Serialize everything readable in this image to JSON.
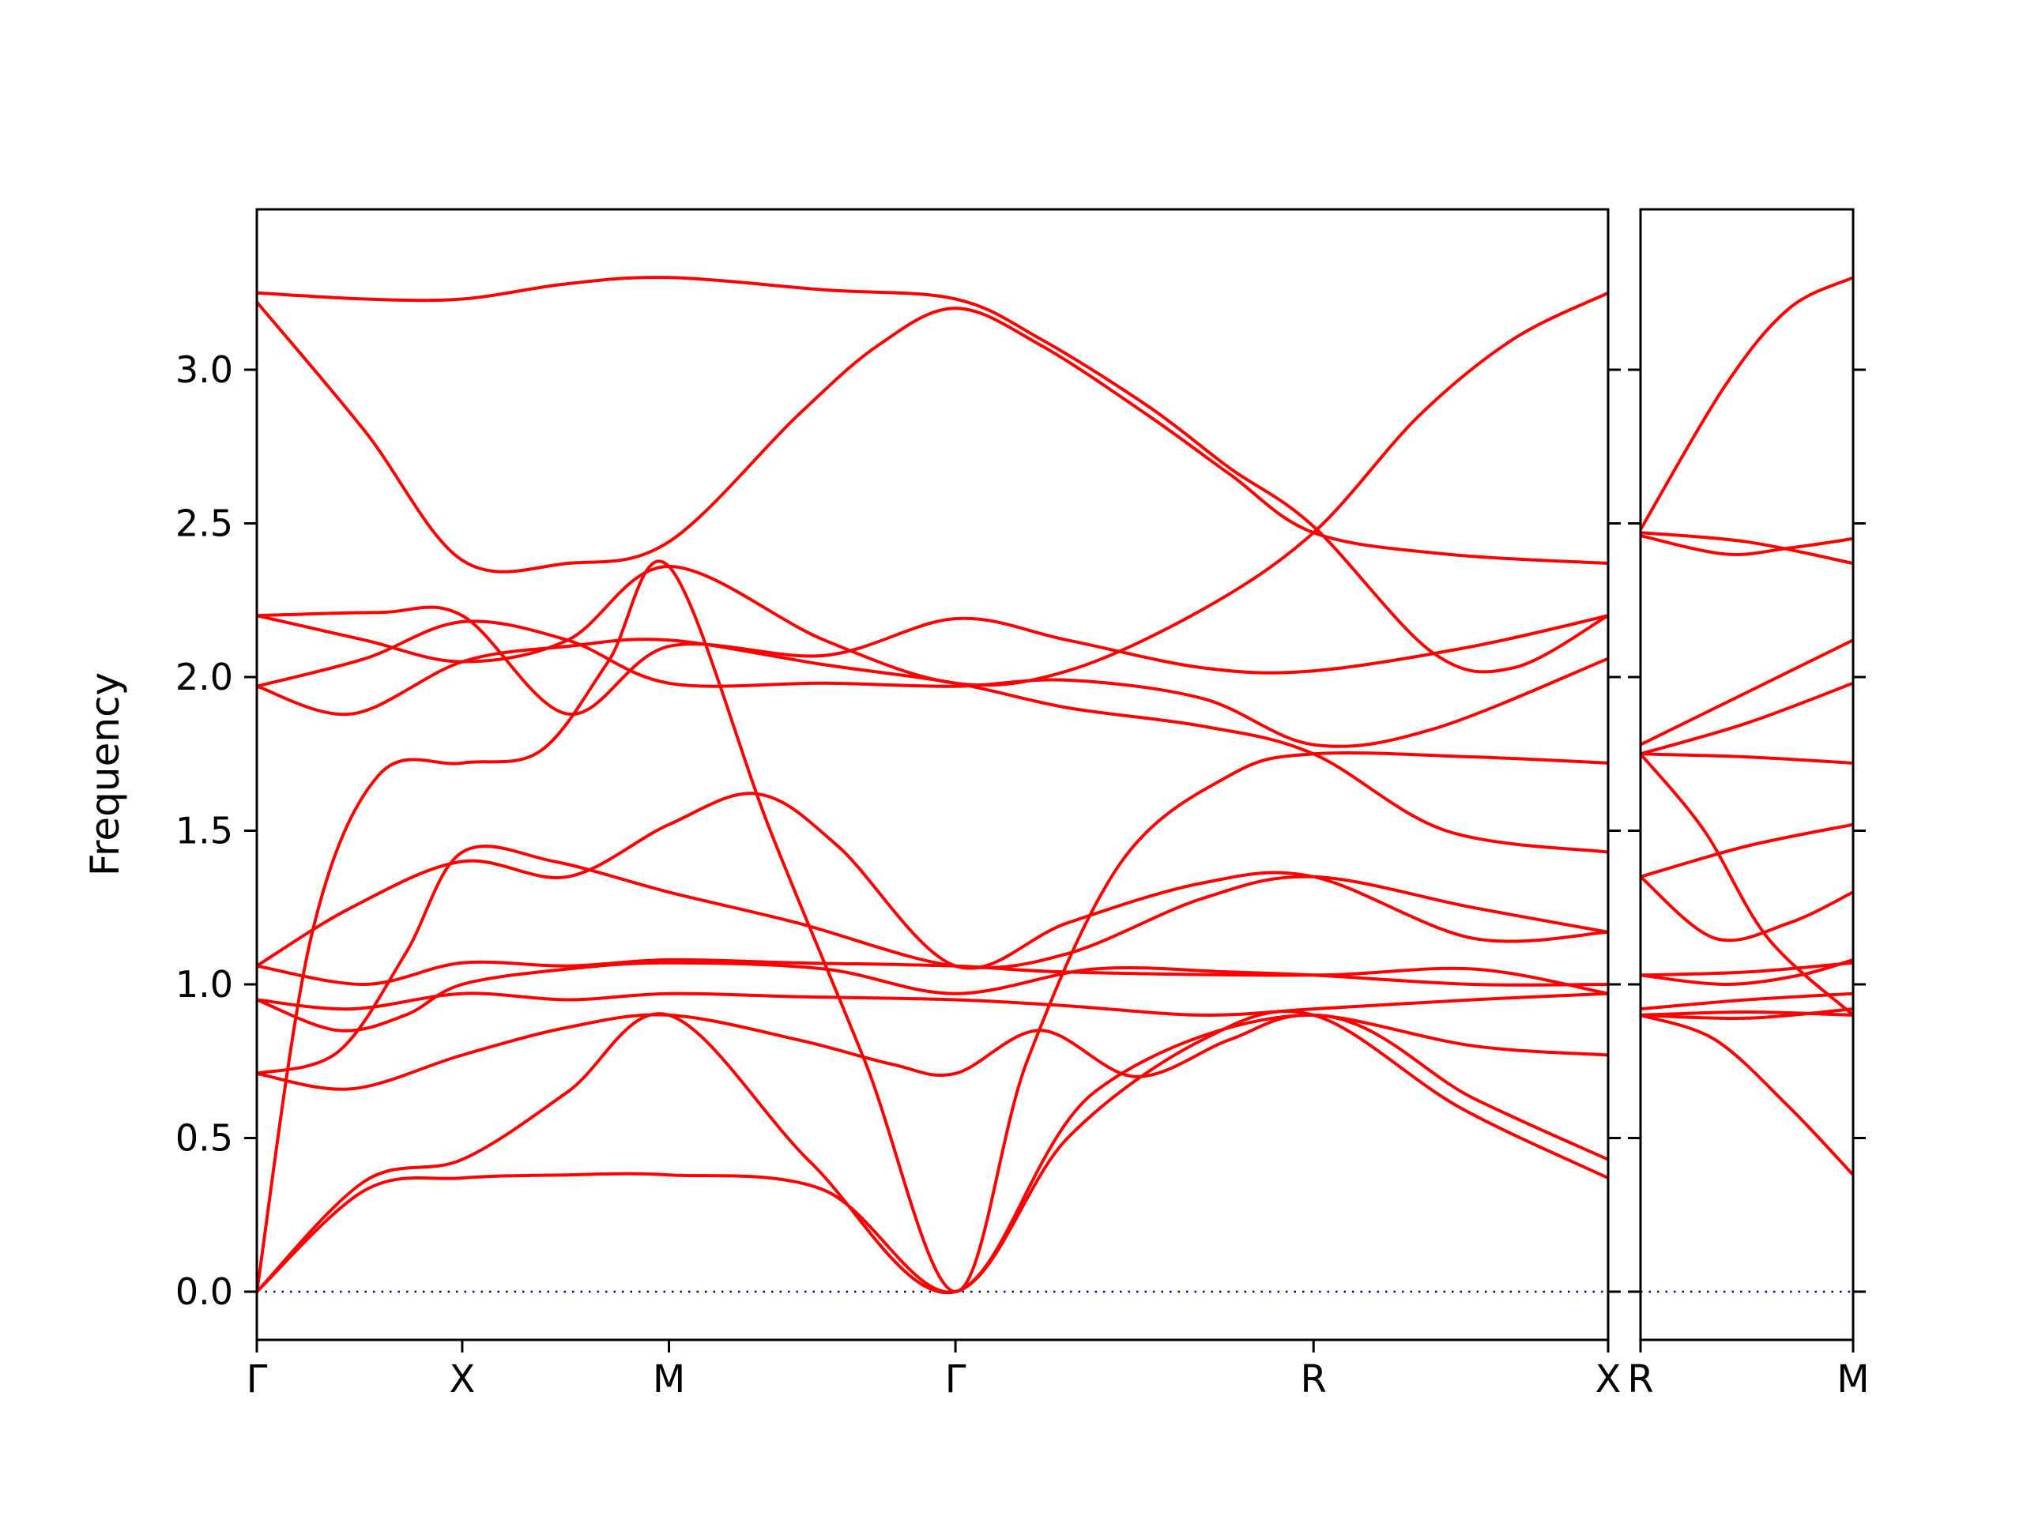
{
  "figure": {
    "background": "#ffffff",
    "band_color": "#ff0000",
    "axis_color": "#000000",
    "zero_line_color": "#00008b"
  },
  "chart_data": {
    "type": "line",
    "title": "",
    "xlabel": "",
    "ylabel": "Frequency",
    "ylim": [
      -0.16,
      3.52
    ],
    "grid": false,
    "legend": null,
    "line_color": "#ff0000",
    "zero_line": {
      "y": 0.0,
      "color": "#00008b",
      "style": "dotted"
    },
    "yticks": [
      0.0,
      0.5,
      1.0,
      1.5,
      2.0,
      2.5,
      3.0
    ],
    "ytick_labels": [
      "0.0",
      "0.5",
      "1.0",
      "1.5",
      "2.0",
      "2.5",
      "3.0"
    ],
    "panels": [
      {
        "name": "main",
        "x_labels": [
          "Γ",
          "X",
          "M",
          "Γ",
          "R",
          "X"
        ],
        "x_positions": [
          0,
          0.152,
          0.305,
          0.517,
          0.782,
          1.0
        ],
        "bands": [
          [
            [
              0,
              0
            ],
            [
              0.08,
              0.33
            ],
            [
              0.152,
              0.37
            ],
            [
              0.23,
              0.38
            ],
            [
              0.305,
              0.38
            ],
            [
              0.42,
              0.33
            ],
            [
              0.517,
              0
            ],
            [
              0.6,
              0.5
            ],
            [
              0.7,
              0.82
            ],
            [
              0.782,
              0.9
            ],
            [
              0.89,
              0.6
            ],
            [
              1,
              0.37
            ]
          ],
          [
            [
              0,
              0
            ],
            [
              0.08,
              0.36
            ],
            [
              0.152,
              0.43
            ],
            [
              0.23,
              0.65
            ],
            [
              0.305,
              0.9
            ],
            [
              0.41,
              0.42
            ],
            [
              0.517,
              0
            ],
            [
              0.62,
              0.65
            ],
            [
              0.782,
              0.9
            ],
            [
              0.9,
              0.63
            ],
            [
              1,
              0.43
            ]
          ],
          [
            [
              0,
              0
            ],
            [
              0.04,
              1.15
            ],
            [
              0.09,
              1.68
            ],
            [
              0.152,
              1.72
            ],
            [
              0.21,
              1.76
            ],
            [
              0.26,
              2.05
            ],
            [
              0.305,
              2.36
            ],
            [
              0.38,
              1.5
            ],
            [
              0.45,
              0.75
            ],
            [
              0.517,
              0
            ],
            [
              0.57,
              0.75
            ],
            [
              0.64,
              1.4
            ],
            [
              0.72,
              1.68
            ],
            [
              0.782,
              1.75
            ],
            [
              0.9,
              1.74
            ],
            [
              1,
              1.72
            ]
          ],
          [
            [
              0,
              0.71
            ],
            [
              0.07,
              0.66
            ],
            [
              0.152,
              0.77
            ],
            [
              0.23,
              0.86
            ],
            [
              0.305,
              0.9
            ],
            [
              0.4,
              0.82
            ],
            [
              0.47,
              0.74
            ],
            [
              0.517,
              0.71
            ],
            [
              0.58,
              0.85
            ],
            [
              0.65,
              0.7
            ],
            [
              0.72,
              0.82
            ],
            [
              0.782,
              0.9
            ],
            [
              0.9,
              0.8
            ],
            [
              1,
              0.77
            ]
          ],
          [
            [
              0,
              0.71
            ],
            [
              0.06,
              0.78
            ],
            [
              0.11,
              1.1
            ],
            [
              0.152,
              1.43
            ],
            [
              0.22,
              1.4
            ],
            [
              0.305,
              1.3
            ],
            [
              0.4,
              1.2
            ],
            [
              0.517,
              1.06
            ],
            [
              0.6,
              1.1
            ],
            [
              0.7,
              1.28
            ],
            [
              0.782,
              1.35
            ],
            [
              0.9,
              1.25
            ],
            [
              1,
              1.17
            ]
          ],
          [
            [
              0,
              0.95
            ],
            [
              0.07,
              0.92
            ],
            [
              0.152,
              0.97
            ],
            [
              0.23,
              0.95
            ],
            [
              0.305,
              0.97
            ],
            [
              0.4,
              0.96
            ],
            [
              0.517,
              0.95
            ],
            [
              0.6,
              0.93
            ],
            [
              0.7,
              0.9
            ],
            [
              0.782,
              0.92
            ],
            [
              0.9,
              0.95
            ],
            [
              1,
              0.97
            ]
          ],
          [
            [
              0,
              0.95
            ],
            [
              0.06,
              0.85
            ],
            [
              0.11,
              0.9
            ],
            [
              0.152,
              1.0
            ],
            [
              0.23,
              1.05
            ],
            [
              0.305,
              1.07
            ],
            [
              0.42,
              1.05
            ],
            [
              0.517,
              0.97
            ],
            [
              0.62,
              1.05
            ],
            [
              0.72,
              1.04
            ],
            [
              0.782,
              1.03
            ],
            [
              0.9,
              1.0
            ],
            [
              1,
              1.0
            ]
          ],
          [
            [
              0,
              1.06
            ],
            [
              0.08,
              1.0
            ],
            [
              0.152,
              1.07
            ],
            [
              0.23,
              1.06
            ],
            [
              0.305,
              1.08
            ],
            [
              0.4,
              1.07
            ],
            [
              0.517,
              1.06
            ],
            [
              0.6,
              1.04
            ],
            [
              0.782,
              1.03
            ],
            [
              0.9,
              1.05
            ],
            [
              1,
              0.97
            ]
          ],
          [
            [
              0,
              1.06
            ],
            [
              0.07,
              1.25
            ],
            [
              0.152,
              1.4
            ],
            [
              0.23,
              1.35
            ],
            [
              0.305,
              1.52
            ],
            [
              0.37,
              1.62
            ],
            [
              0.43,
              1.45
            ],
            [
              0.517,
              1.06
            ],
            [
              0.6,
              1.2
            ],
            [
              0.7,
              1.33
            ],
            [
              0.782,
              1.35
            ],
            [
              0.9,
              1.15
            ],
            [
              1,
              1.17
            ]
          ],
          [
            [
              0,
              1.97
            ],
            [
              0.07,
              1.88
            ],
            [
              0.152,
              2.05
            ],
            [
              0.23,
              2.1
            ],
            [
              0.305,
              2.12
            ],
            [
              0.42,
              2.04
            ],
            [
              0.517,
              1.98
            ],
            [
              0.6,
              1.9
            ],
            [
              0.7,
              1.84
            ],
            [
              0.782,
              1.75
            ],
            [
              0.88,
              1.5
            ],
            [
              1,
              1.43
            ]
          ],
          [
            [
              0,
              1.97
            ],
            [
              0.08,
              2.06
            ],
            [
              0.152,
              2.18
            ],
            [
              0.23,
              2.12
            ],
            [
              0.305,
              1.98
            ],
            [
              0.42,
              1.98
            ],
            [
              0.517,
              1.97
            ],
            [
              0.6,
              1.99
            ],
            [
              0.7,
              1.93
            ],
            [
              0.782,
              1.78
            ],
            [
              0.87,
              1.83
            ],
            [
              1,
              2.06
            ]
          ],
          [
            [
              0,
              2.2
            ],
            [
              0.09,
              2.21
            ],
            [
              0.152,
              2.2
            ],
            [
              0.23,
              1.88
            ],
            [
              0.305,
              2.1
            ],
            [
              0.42,
              2.07
            ],
            [
              0.517,
              2.19
            ],
            [
              0.6,
              2.12
            ],
            [
              0.7,
              2.03
            ],
            [
              0.782,
              2.02
            ],
            [
              0.9,
              2.1
            ],
            [
              1,
              2.2
            ]
          ],
          [
            [
              0,
              3.22
            ],
            [
              0.08,
              2.8
            ],
            [
              0.152,
              2.38
            ],
            [
              0.23,
              2.37
            ],
            [
              0.305,
              2.44
            ],
            [
              0.4,
              2.85
            ],
            [
              0.46,
              3.08
            ],
            [
              0.517,
              3.2
            ],
            [
              0.58,
              3.08
            ],
            [
              0.66,
              2.85
            ],
            [
              0.72,
              2.66
            ],
            [
              0.782,
              2.47
            ],
            [
              0.88,
              2.4
            ],
            [
              1,
              2.37
            ]
          ],
          [
            [
              0,
              3.25
            ],
            [
              0.08,
              3.23
            ],
            [
              0.152,
              3.23
            ],
            [
              0.23,
              3.28
            ],
            [
              0.305,
              3.3
            ],
            [
              0.42,
              3.26
            ],
            [
              0.517,
              3.23
            ],
            [
              0.58,
              3.1
            ],
            [
              0.66,
              2.88
            ],
            [
              0.72,
              2.68
            ],
            [
              0.782,
              2.49
            ],
            [
              0.87,
              2.08
            ],
            [
              0.93,
              2.03
            ],
            [
              1,
              2.2
            ]
          ],
          [
            [
              0,
              2.2
            ],
            [
              0.08,
              2.12
            ],
            [
              0.152,
              2.05
            ],
            [
              0.23,
              2.12
            ],
            [
              0.305,
              2.36
            ],
            [
              0.42,
              2.12
            ],
            [
              0.517,
              1.98
            ],
            [
              0.6,
              2.02
            ],
            [
              0.7,
              2.22
            ],
            [
              0.782,
              2.47
            ],
            [
              0.86,
              2.85
            ],
            [
              0.93,
              3.1
            ],
            [
              1,
              3.25
            ]
          ]
        ]
      },
      {
        "name": "RM",
        "x_labels": [
          "R",
          "M"
        ],
        "x_positions": [
          0,
          1.0
        ],
        "bands": [
          [
            [
              0,
              0.9
            ],
            [
              0.35,
              0.82
            ],
            [
              0.7,
              0.6
            ],
            [
              1,
              0.38
            ]
          ],
          [
            [
              0,
              0.9
            ],
            [
              0.5,
              0.91
            ],
            [
              1,
              0.9
            ]
          ],
          [
            [
              0,
              0.9
            ],
            [
              0.5,
              0.89
            ],
            [
              1,
              0.92
            ]
          ],
          [
            [
              0,
              0.92
            ],
            [
              0.5,
              0.95
            ],
            [
              1,
              0.97
            ]
          ],
          [
            [
              0,
              1.03
            ],
            [
              0.5,
              1.04
            ],
            [
              1,
              1.07
            ]
          ],
          [
            [
              0,
              1.03
            ],
            [
              0.4,
              1.0
            ],
            [
              0.75,
              1.03
            ],
            [
              1,
              1.08
            ]
          ],
          [
            [
              0,
              1.35
            ],
            [
              0.35,
              1.15
            ],
            [
              0.7,
              1.2
            ],
            [
              1,
              1.3
            ]
          ],
          [
            [
              0,
              1.35
            ],
            [
              0.5,
              1.45
            ],
            [
              1,
              1.52
            ]
          ],
          [
            [
              0,
              1.75
            ],
            [
              0.5,
              1.74
            ],
            [
              1,
              1.72
            ]
          ],
          [
            [
              0,
              1.75
            ],
            [
              0.5,
              1.85
            ],
            [
              1,
              1.98
            ]
          ],
          [
            [
              0,
              1.78
            ],
            [
              0.5,
              1.95
            ],
            [
              1,
              2.12
            ]
          ],
          [
            [
              0,
              1.75
            ],
            [
              0.3,
              1.5
            ],
            [
              0.6,
              1.15
            ],
            [
              1,
              0.9
            ]
          ],
          [
            [
              0,
              2.47
            ],
            [
              0.5,
              2.44
            ],
            [
              1,
              2.37
            ]
          ],
          [
            [
              0,
              2.46
            ],
            [
              0.4,
              2.4
            ],
            [
              0.7,
              2.42
            ],
            [
              1,
              2.45
            ]
          ],
          [
            [
              0,
              2.48
            ],
            [
              0.4,
              2.95
            ],
            [
              0.7,
              3.2
            ],
            [
              1,
              3.3
            ]
          ]
        ]
      }
    ]
  }
}
